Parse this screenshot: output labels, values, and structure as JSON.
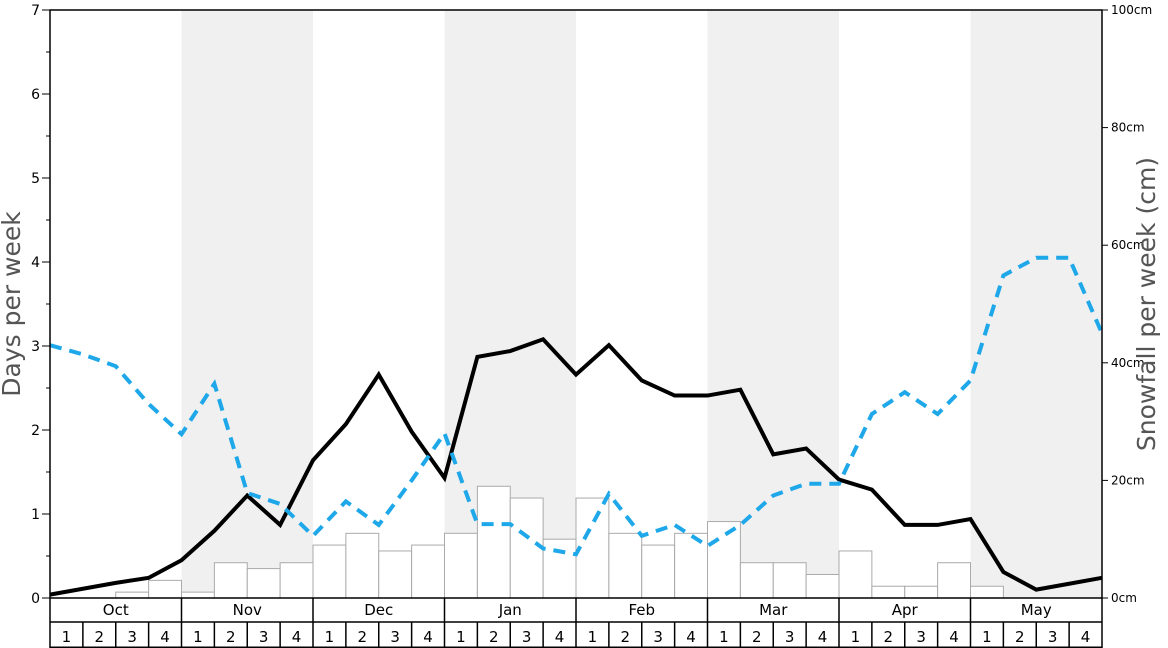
{
  "chart_data": {
    "type": "bar",
    "left_axis": {
      "label": "Days per week",
      "ylim": [
        0,
        7
      ],
      "ticks": [
        "0",
        "1",
        "2",
        "3",
        "4",
        "5",
        "6",
        "7"
      ]
    },
    "right_axis": {
      "label": "Snowfall per week (cm)",
      "ylim": [
        0,
        100
      ],
      "ticks": [
        "0cm",
        "20cm",
        "40cm",
        "60cm",
        "80cm",
        "100cm"
      ]
    },
    "months": [
      "Oct",
      "Nov",
      "Dec",
      "Jan",
      "Feb",
      "Mar",
      "Apr",
      "May"
    ],
    "weeks": [
      "1",
      "2",
      "3",
      "4"
    ],
    "shaded_months": [
      "Nov",
      "Jan",
      "Mar",
      "May"
    ],
    "colors": {
      "bars_fill": "#ffffff",
      "bars_stroke": "#aaaaaa",
      "black_line": "#000000",
      "blue_line": "#1ea7e9",
      "shade": "#f0f0f0"
    },
    "series": [
      {
        "kind": "bars",
        "axis": "right",
        "values": [
          0,
          0,
          1,
          3,
          1,
          6,
          5,
          6,
          9,
          11,
          8,
          9,
          11,
          19,
          17,
          10,
          17,
          11,
          9,
          11,
          13,
          6,
          6,
          4,
          8,
          2,
          2,
          6,
          2,
          0,
          0,
          0
        ]
      },
      {
        "kind": "line",
        "style": "solid",
        "axis": "left",
        "values": [
          0.04,
          0.11,
          0.18,
          0.24,
          0.45,
          0.8,
          1.22,
          0.87,
          1.64,
          2.07,
          2.66,
          1.98,
          1.43,
          2.87,
          2.94,
          3.08,
          2.66,
          3.01,
          2.59,
          2.41,
          2.41,
          2.48,
          1.71,
          1.78,
          1.41,
          1.29,
          0.87,
          0.87,
          0.94,
          0.31,
          0.1,
          0.17,
          0.24
        ]
      },
      {
        "kind": "line",
        "style": "dashed",
        "axis": "left",
        "values": [
          3.01,
          2.9,
          2.76,
          2.31,
          1.95,
          2.55,
          1.25,
          1.12,
          0.74,
          1.15,
          0.87,
          1.4,
          1.96,
          0.88,
          0.88,
          0.59,
          0.52,
          1.24,
          0.74,
          0.87,
          0.62,
          0.87,
          1.22,
          1.36,
          1.36,
          2.19,
          2.45,
          2.19,
          2.59,
          3.84,
          4.05,
          4.05,
          3.15
        ]
      }
    ]
  }
}
